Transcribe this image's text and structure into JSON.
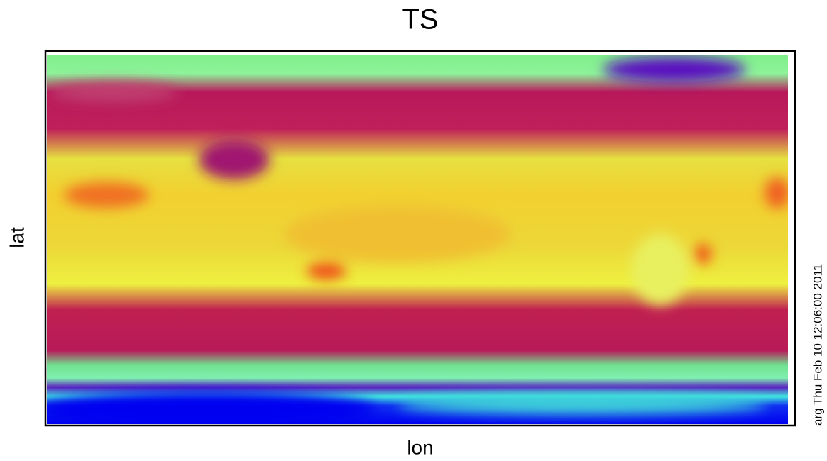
{
  "chart_data": {
    "type": "raster",
    "title": "TS",
    "x_label": "lon",
    "y_label": "lat",
    "annotation": "arg Thu Feb 10 12:06:00 2011"
  }
}
